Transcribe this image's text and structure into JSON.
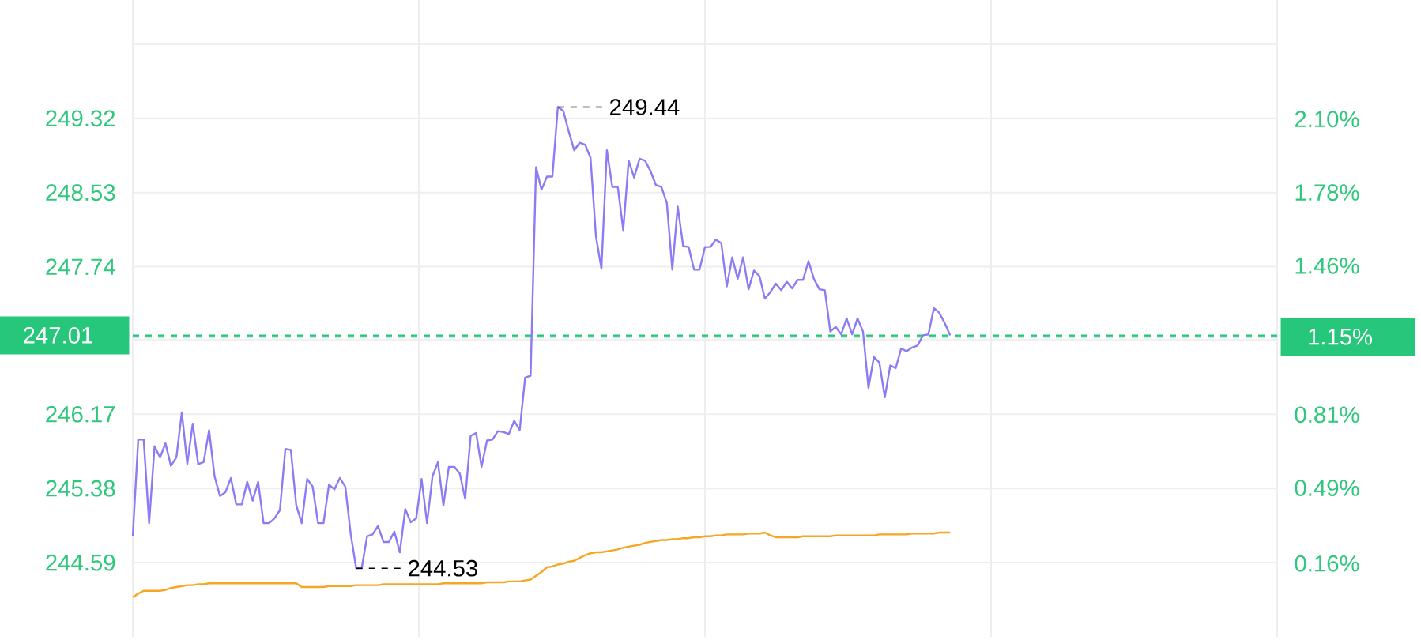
{
  "chart_data": {
    "type": "line",
    "categories": [
      null,
      null,
      null,
      null,
      null,
      null,
      null,
      null,
      null,
      null,
      null,
      null,
      null,
      null,
      null,
      null,
      null,
      null,
      null,
      null,
      null,
      null,
      null,
      null,
      null,
      null,
      null,
      null,
      null,
      null,
      null,
      null,
      null,
      null,
      null,
      null,
      null,
      null,
      null,
      null,
      null,
      null,
      null,
      null,
      null,
      null,
      null,
      null,
      null,
      null,
      null,
      null,
      null,
      null,
      null,
      null,
      null,
      null,
      null,
      null,
      null,
      null,
      null,
      null,
      null,
      null,
      null,
      null,
      null,
      null,
      null,
      null,
      null,
      null,
      null,
      null,
      null,
      null,
      null,
      null,
      null,
      null,
      null,
      null,
      null,
      null,
      null,
      null,
      null,
      null,
      null,
      null,
      null,
      null,
      null,
      null,
      null,
      null,
      null,
      null,
      null,
      null,
      null,
      null,
      null,
      null,
      null,
      null,
      null,
      null,
      null,
      null,
      null,
      null,
      null,
      null,
      null,
      null,
      null,
      null,
      null,
      null,
      null,
      null,
      null,
      null,
      null,
      null,
      null,
      null,
      null,
      null,
      null,
      null,
      null,
      null,
      null,
      null,
      null,
      null,
      null,
      null,
      null,
      null,
      null,
      null,
      null,
      null,
      null,
      null,
      null,
      null,
      null,
      null,
      null,
      null,
      null,
      null,
      null,
      null,
      null,
      null,
      null,
      null,
      null,
      null,
      null,
      null,
      null,
      null,
      null,
      null,
      null,
      null,
      null,
      null,
      null,
      null,
      null,
      null,
      null,
      null,
      null,
      null,
      null,
      null,
      null,
      null,
      null,
      null,
      null,
      null,
      null,
      null,
      null,
      null,
      null,
      null,
      null,
      null,
      null,
      null,
      null,
      null,
      null,
      null,
      null,
      null,
      null,
      null,
      null
    ],
    "ylim": [
      243.8,
      250.58
    ],
    "yticks": [
      {
        "value": 250.11,
        "label": null
      },
      249.32,
      248.53,
      247.74,
      {
        "value": 246.96,
        "label": null
      },
      246.17,
      245.38,
      244.59
    ],
    "y2lim": [
      -0.16,
      2.62
    ],
    "y2ticks": [
      {
        "value": 2.1,
        "label": "2.10%"
      },
      {
        "value": 1.78,
        "label": "1.78%"
      },
      {
        "value": 1.46,
        "label": "1.46%"
      },
      {
        "value": 0.81,
        "label": "0.81%"
      },
      {
        "value": 0.49,
        "label": "0.49%"
      },
      {
        "value": 0.16,
        "label": "0.16%"
      }
    ],
    "grid": true,
    "marker": "none",
    "line_style": "solid",
    "series": [
      {
        "color": "#8b7cf6",
        "values": [
          244.87,
          245.9,
          245.9,
          245.01,
          245.83,
          245.71,
          245.86,
          245.62,
          245.71,
          246.19,
          245.64,
          246.07,
          245.64,
          245.66,
          246.0,
          245.51,
          245.3,
          245.34,
          245.49,
          245.21,
          245.21,
          245.45,
          245.25,
          245.45,
          245.01,
          245.01,
          245.06,
          245.15,
          245.8,
          245.79,
          245.2,
          245.01,
          245.48,
          245.4,
          245.01,
          245.01,
          245.42,
          245.37,
          245.49,
          245.4,
          244.89,
          244.53,
          244.53,
          244.87,
          244.89,
          244.98,
          244.81,
          244.81,
          244.92,
          244.7,
          245.16,
          245.02,
          245.06,
          245.48,
          245.01,
          245.51,
          245.66,
          245.2,
          245.61,
          245.61,
          245.54,
          245.27,
          245.94,
          245.97,
          245.61,
          245.89,
          245.9,
          245.99,
          245.98,
          245.96,
          246.1,
          246.0,
          246.56,
          246.58,
          248.8,
          248.56,
          248.7,
          248.7,
          249.44,
          249.4,
          249.18,
          248.98,
          249.06,
          249.04,
          248.9,
          248.06,
          247.72,
          248.98,
          248.59,
          248.59,
          248.13,
          248.87,
          248.69,
          248.89,
          248.87,
          248.76,
          248.61,
          248.59,
          248.42,
          247.71,
          248.38,
          247.96,
          247.95,
          247.71,
          247.71,
          247.95,
          247.95,
          248.03,
          247.99,
          247.53,
          247.84,
          247.61,
          247.84,
          247.5,
          247.7,
          247.64,
          247.4,
          247.47,
          247.56,
          247.49,
          247.58,
          247.51,
          247.6,
          247.6,
          247.8,
          247.61,
          247.5,
          247.49,
          247.05,
          247.1,
          247.02,
          247.19,
          247.02,
          247.19,
          247.05,
          246.45,
          246.78,
          246.72,
          246.35,
          246.69,
          246.66,
          246.87,
          246.84,
          246.88,
          246.9,
          247.01,
          247.02,
          247.3,
          247.25,
          247.14,
          247.01,
          null,
          null,
          null,
          null,
          null,
          null,
          null,
          null,
          null,
          null,
          null,
          null,
          null,
          null,
          null,
          null,
          null,
          null,
          null,
          null,
          null,
          null,
          null,
          null,
          null,
          null,
          null,
          null,
          null,
          null,
          null,
          null,
          null,
          null,
          null,
          null,
          null,
          null,
          null,
          null,
          null,
          null,
          null,
          null,
          null,
          null,
          null,
          null,
          null,
          null,
          null,
          null,
          null,
          null,
          null,
          null,
          null,
          null,
          null,
          null
        ]
      },
      {
        "color": "#f5a623",
        "values": [
          244.22,
          244.26,
          244.29,
          244.29,
          244.29,
          244.29,
          244.3,
          244.32,
          244.33,
          244.34,
          244.35,
          244.35,
          244.36,
          244.36,
          244.37,
          244.37,
          244.37,
          244.37,
          244.37,
          244.37,
          244.37,
          244.37,
          244.37,
          244.37,
          244.37,
          244.37,
          244.37,
          244.37,
          244.37,
          244.37,
          244.37,
          244.33,
          244.33,
          244.33,
          244.33,
          244.33,
          244.34,
          244.34,
          244.34,
          244.34,
          244.34,
          244.35,
          244.35,
          244.35,
          244.35,
          244.35,
          244.36,
          244.36,
          244.36,
          244.36,
          244.36,
          244.36,
          244.36,
          244.36,
          244.36,
          244.36,
          244.36,
          244.37,
          244.37,
          244.37,
          244.37,
          244.37,
          244.37,
          244.37,
          244.37,
          244.38,
          244.38,
          244.38,
          244.38,
          244.39,
          244.39,
          244.39,
          244.4,
          244.41,
          244.45,
          244.49,
          244.54,
          244.55,
          244.57,
          244.58,
          244.6,
          244.61,
          244.64,
          244.67,
          244.69,
          244.7,
          244.7,
          244.71,
          244.72,
          244.73,
          244.75,
          244.76,
          244.77,
          244.78,
          244.8,
          244.81,
          244.82,
          244.83,
          244.83,
          244.84,
          244.84,
          244.85,
          244.85,
          244.86,
          244.86,
          244.87,
          244.87,
          244.88,
          244.88,
          244.89,
          244.89,
          244.89,
          244.89,
          244.9,
          244.9,
          244.9,
          244.91,
          244.88,
          244.86,
          244.86,
          244.86,
          244.86,
          244.86,
          244.87,
          244.87,
          244.87,
          244.87,
          244.87,
          244.87,
          244.88,
          244.88,
          244.88,
          244.88,
          244.88,
          244.88,
          244.88,
          244.88,
          244.89,
          244.89,
          244.89,
          244.89,
          244.89,
          244.89,
          244.9,
          244.9,
          244.9,
          244.9,
          244.9,
          244.91,
          244.91,
          244.91,
          null,
          null,
          null,
          null,
          null,
          null,
          null,
          null,
          null,
          null,
          null,
          null,
          null,
          null,
          null,
          null,
          null,
          null,
          null,
          null,
          null,
          null,
          null,
          null,
          null,
          null,
          null,
          null,
          null,
          null,
          null,
          null,
          null,
          null,
          null,
          null,
          null,
          null,
          null,
          null,
          null,
          null,
          null,
          null,
          null,
          null,
          null,
          null,
          null,
          null,
          null,
          null,
          null,
          null,
          null,
          null,
          null,
          null,
          null,
          null
        ]
      }
    ],
    "ref_lines": [
      {
        "axis": "y",
        "value": 247.01,
        "label": "247.01",
        "color": "#26c67b",
        "line_style": "dashed"
      },
      {
        "axis": "y2",
        "value": 1.15,
        "label": "1.15%",
        "color": "#26c67b",
        "line_style": "dashed"
      }
    ],
    "annotations": [
      "249.44",
      "244.53"
    ]
  }
}
